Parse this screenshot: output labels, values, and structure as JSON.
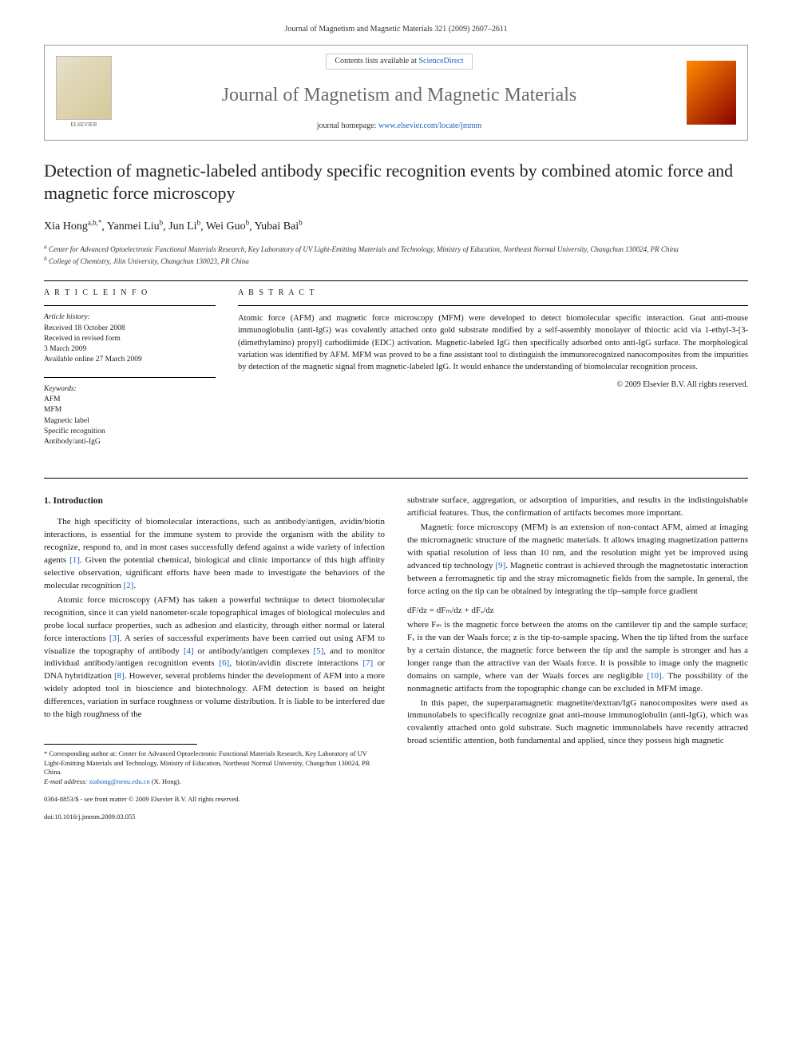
{
  "header": {
    "journal_ref": "Journal of Magnetism and Magnetic Materials 321 (2009) 2607–2611"
  },
  "banner": {
    "contents_prefix": "Contents lists available at ",
    "contents_link": "ScienceDirect",
    "journal_name": "Journal of Magnetism and Magnetic Materials",
    "homepage_prefix": "journal homepage: ",
    "homepage_url": "www.elsevier.com/locate/jmmm",
    "publisher": "ELSEVIER"
  },
  "article": {
    "title": "Detection of magnetic-labeled antibody specific recognition events by combined atomic force and magnetic force microscopy",
    "authors_html": "Xia Hong",
    "author_list": [
      {
        "name": "Xia Hong",
        "marks": "a,b,*"
      },
      {
        "name": "Yanmei Liu",
        "marks": "b"
      },
      {
        "name": "Jun Li",
        "marks": "b"
      },
      {
        "name": "Wei Guo",
        "marks": "b"
      },
      {
        "name": "Yubai Bai",
        "marks": "b"
      }
    ],
    "affiliations": [
      {
        "mark": "a",
        "text": "Center for Advanced Optoelectronic Functional Materials Research, Key Laboratory of UV Light-Emitting Materials and Technology, Ministry of Education, Northeast Normal University, Changchun 130024, PR China"
      },
      {
        "mark": "b",
        "text": "College of Chemistry, Jilin University, Changchun 130023, PR China"
      }
    ]
  },
  "meta": {
    "info_heading": "A R T I C L E   I N F O",
    "history_label": "Article history:",
    "history": [
      "Received 18 October 2008",
      "Received in revised form",
      "3 March 2009",
      "Available online 27 March 2009"
    ],
    "keywords_label": "Keywords:",
    "keywords": [
      "AFM",
      "MFM",
      "Magnetic label",
      "Specific recognition",
      "Antibody/anti-IgG"
    ]
  },
  "abstract": {
    "heading": "A B S T R A C T",
    "text": "Atomic force (AFM) and magnetic force microscopy (MFM) were developed to detect biomolecular specific interaction. Goat anti-mouse immunoglobulin (anti-IgG) was covalently attached onto gold substrate modified by a self-assembly monolayer of thioctic acid via 1-ethyl-3-[3-(dimethylamino) propyl] carbodiimide (EDC) activation. Magnetic-labeled IgG then specifically adsorbed onto anti-IgG surface. The morphological variation was identified by AFM. MFM was proved to be a fine assistant tool to distinguish the immunorecognized nanocomposites from the impurities by detection of the magnetic signal from magnetic-labeled IgG. It would enhance the understanding of biomolecular recognition process.",
    "copyright": "© 2009 Elsevier B.V. All rights reserved."
  },
  "body": {
    "section_heading": "1. Introduction",
    "left_paragraphs": [
      "The high specificity of biomolecular interactions, such as antibody/antigen, avidin/biotin interactions, is essential for the immune system to provide the organism with the ability to recognize, respond to, and in most cases successfully defend against a wide variety of infection agents [1]. Given the potential chemical, biological and clinic importance of this high affinity selective observation, significant efforts have been made to investigate the behaviors of the molecular recognition [2].",
      "Atomic force microscopy (AFM) has taken a powerful technique to detect biomolecular recognition, since it can yield nanometer-scale topographical images of biological molecules and probe local surface properties, such as adhesion and elasticity, through either normal or lateral force interactions [3]. A series of successful experiments have been carried out using AFM to visualize the topography of antibody [4] or antibody/antigen complexes [5], and to monitor individual antibody/antigen recognition events [6], biotin/avidin discrete interactions [7] or DNA hybridization [8]. However, several problems hinder the development of AFM into a more widely adopted tool in bioscience and biotechnology. AFM detection is based on height differences, variation in surface roughness or volume distribution. It is liable to be interfered due to the high roughness of the"
    ],
    "right_paragraphs_a": [
      "substrate surface, aggregation, or adsorption of impurities, and results in the indistinguishable artificial features. Thus, the confirmation of artifacts becomes more important.",
      "Magnetic force microscopy (MFM) is an extension of non-contact AFM, aimed at imaging the micromagnetic structure of the magnetic materials. It allows imaging magnetization patterns with spatial resolution of less than 10 nm, and the resolution might yet be improved using advanced tip technology [9]. Magnetic contrast is achieved through the magnetostatic interaction between a ferromagnetic tip and the stray micromagnetic fields from the sample. In general, the force acting on the tip can be obtained by integrating the tip–sample force gradient"
    ],
    "formula": "dF/dz = dFₘ/dz + dFᵥ/dz",
    "right_paragraphs_b": [
      "where Fₘ is the magnetic force between the atoms on the cantilever tip and the sample surface; Fᵥ is the van der Waals force; z is the tip-to-sample spacing. When the tip lifted from the surface by a certain distance, the magnetic force between the tip and the sample is stronger and has a longer range than the attractive van der Waals force. It is possible to image only the magnetic domains on sample, where van der Waals forces are negligible [10]. The possibility of the nonmagnetic artifacts from the topographic change can be excluded in MFM image.",
      "In this paper, the superparamagnetic magnetite/dextran/IgG nanocomposites were used as immunolabels to specifically recognize goat anti-mouse immunoglobulin (anti-IgG), which was covalently attached onto gold substrate. Such magnetic immunolabels have recently attracted broad scientific attention, both fundamental and applied, since they possess high magnetic"
    ]
  },
  "footnote": {
    "corresponding": "* Corresponding author at: Center for Advanced Optoelectronic Functional Materials Research, Key Laboratory of UV Light-Emitting Materials and Technology, Ministry of Education, Northeast Normal University, Changchun 130024, PR China.",
    "email_label": "E-mail address:",
    "email": "xiahong@nenu.edu.cn",
    "email_suffix": "(X. Hong)."
  },
  "footer": {
    "front_matter": "0304-8853/$ - see front matter © 2009 Elsevier B.V. All rights reserved.",
    "doi": "doi:10.1016/j.jmmm.2009.03.055"
  },
  "ref_links": [
    "[1]",
    "[2]",
    "[3]",
    "[4]",
    "[5]",
    "[6]",
    "[7]",
    "[8]",
    "[9]",
    "[10]"
  ],
  "colors": {
    "link": "#2060c0",
    "journal_name": "#6a6a6a",
    "cover_grad_a": "#ff8c00",
    "cover_grad_b": "#8b0000"
  }
}
